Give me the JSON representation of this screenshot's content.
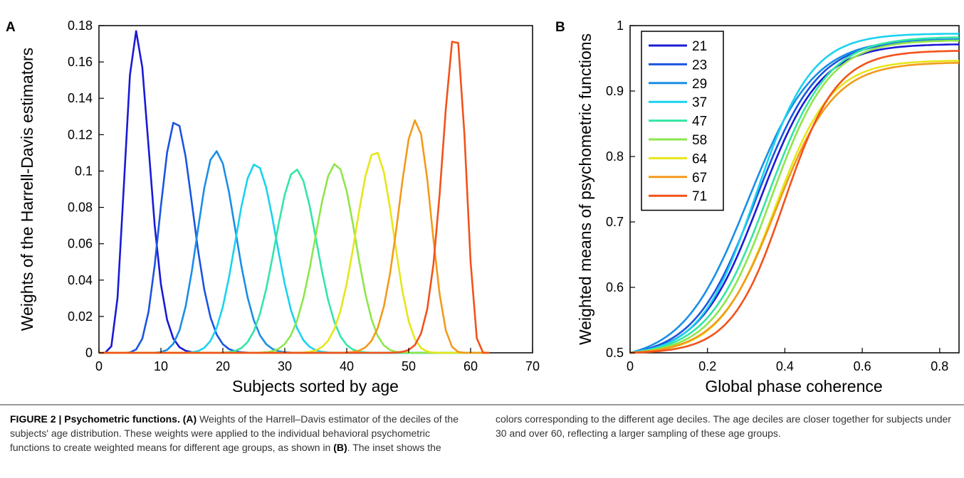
{
  "chart_data": [
    {
      "panel": "A",
      "type": "line",
      "xlabel": "Subjects sorted by age",
      "ylabel": "Weights of the Harrell-Davis estimators",
      "xlim": [
        0,
        70
      ],
      "ylim": [
        0,
        0.18
      ],
      "xticks": [
        "0",
        "10",
        "20",
        "30",
        "40",
        "50",
        "60",
        "70"
      ],
      "yticks": [
        "0",
        "0.02",
        "0.04",
        "0.06",
        "0.08",
        "0.1",
        "0.12",
        "0.14",
        "0.16",
        "0.18"
      ],
      "grid": false,
      "series": [
        {
          "color": "#1a1ad6",
          "peak_x": 6,
          "peak_y": 0.177
        },
        {
          "color": "#1a55e0",
          "peak_x": 12.4,
          "peak_y": 0.128
        },
        {
          "color": "#1a8ee6",
          "peak_x": 18.9,
          "peak_y": 0.111
        },
        {
          "color": "#1ad2ee",
          "peak_x": 25.3,
          "peak_y": 0.104
        },
        {
          "color": "#33e6a4",
          "peak_x": 31.8,
          "peak_y": 0.101
        },
        {
          "color": "#8ee64a",
          "peak_x": 38.2,
          "peak_y": 0.104
        },
        {
          "color": "#e6e61a",
          "peak_x": 44.6,
          "peak_y": 0.111
        },
        {
          "color": "#f29a1a",
          "peak_x": 51.1,
          "peak_y": 0.128
        },
        {
          "color": "#f2521a",
          "peak_x": 57.5,
          "peak_y": 0.177
        }
      ]
    },
    {
      "panel": "B",
      "type": "line",
      "xlabel": "Global phase coherence",
      "ylabel": "Weighted means of psychometric functions",
      "xlim": [
        0,
        0.85
      ],
      "ylim": [
        0.5,
        1
      ],
      "xticks": [
        "0",
        "0.2",
        "0.4",
        "0.6",
        "0.8"
      ],
      "yticks": [
        "0.5",
        "0.6",
        "0.7",
        "0.8",
        "0.9",
        "1"
      ],
      "grid": false,
      "legend_position": "top-left",
      "series": [
        {
          "name": "21",
          "color": "#1a1ad6",
          "mid": 0.335,
          "width": 0.078,
          "upper": 0.972
        },
        {
          "name": "23",
          "color": "#1a55e0",
          "mid": 0.325,
          "width": 0.08,
          "upper": 0.978
        },
        {
          "name": "29",
          "color": "#1a8ee6",
          "mid": 0.305,
          "width": 0.085,
          "upper": 0.98
        },
        {
          "name": "37",
          "color": "#1ad2ee",
          "mid": 0.325,
          "width": 0.072,
          "upper": 0.988
        },
        {
          "name": "47",
          "color": "#33e6a4",
          "mid": 0.355,
          "width": 0.078,
          "upper": 0.983
        },
        {
          "name": "58",
          "color": "#8ee64a",
          "mid": 0.365,
          "width": 0.075,
          "upper": 0.978
        },
        {
          "name": "64",
          "color": "#e6e61a",
          "mid": 0.375,
          "width": 0.072,
          "upper": 0.947
        },
        {
          "name": "67",
          "color": "#f29a1a",
          "mid": 0.378,
          "width": 0.075,
          "upper": 0.944
        },
        {
          "name": "71",
          "color": "#f2521a",
          "mid": 0.398,
          "width": 0.068,
          "upper": 0.962
        }
      ]
    }
  ],
  "caption": {
    "lead": "FIGURE 2 | Psychometric functions.",
    "ref_a": "(A)",
    "text_1": " Weights of the Harrell–Davis estimator of the deciles of the subjects' age distribution. These weights were applied to the individual behavioral psychometric functions to create weighted means for different age groups, as shown in ",
    "ref_b": "(B)",
    "text_2": ". The inset shows the colors corresponding to the different age deciles. The age deciles are closer together for subjects under 30 and over 60, reflecting a larger sampling of these age groups."
  }
}
